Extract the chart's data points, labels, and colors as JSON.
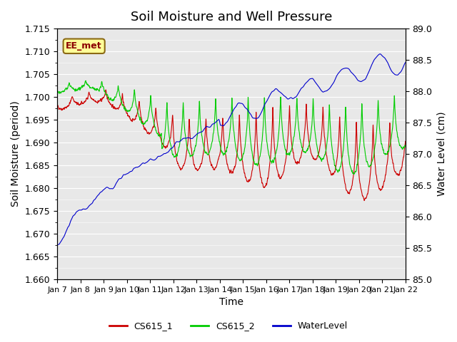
{
  "title": "Soil Moisture and Well Pressure",
  "xlabel": "Time",
  "ylabel_left": "Soil Moisture (period)",
  "ylabel_right": "Water Level (cm)",
  "ylim_left": [
    1.66,
    1.715
  ],
  "ylim_right": [
    85.0,
    89.0
  ],
  "xtick_labels": [
    "Jan 7",
    "Jan 8",
    "Jan 9",
    "Jan 10",
    "Jan 11",
    "Jan 12",
    "Jan 13",
    "Jan 14",
    "Jan 15",
    "Jan 16",
    "Jan 17",
    "Jan 18",
    "Jan 19",
    "Jan 20",
    "Jan 21",
    "Jan 22"
  ],
  "annotation_text": "EE_met",
  "annotation_color": "#8B0000",
  "annotation_bg": "#FFFF99",
  "annotation_border": "#8B6914",
  "color_cs615_1": "#CC0000",
  "color_cs615_2": "#00CC00",
  "color_waterlevel": "#0000CC",
  "legend_labels": [
    "CS615_1",
    "CS615_2",
    "WaterLevel"
  ],
  "bg_color": "#FFFFFF",
  "plot_bg_color": "#E8E8E8",
  "grid_color": "#FFFFFF",
  "title_fontsize": 13,
  "axis_fontsize": 10,
  "tick_fontsize": 9
}
